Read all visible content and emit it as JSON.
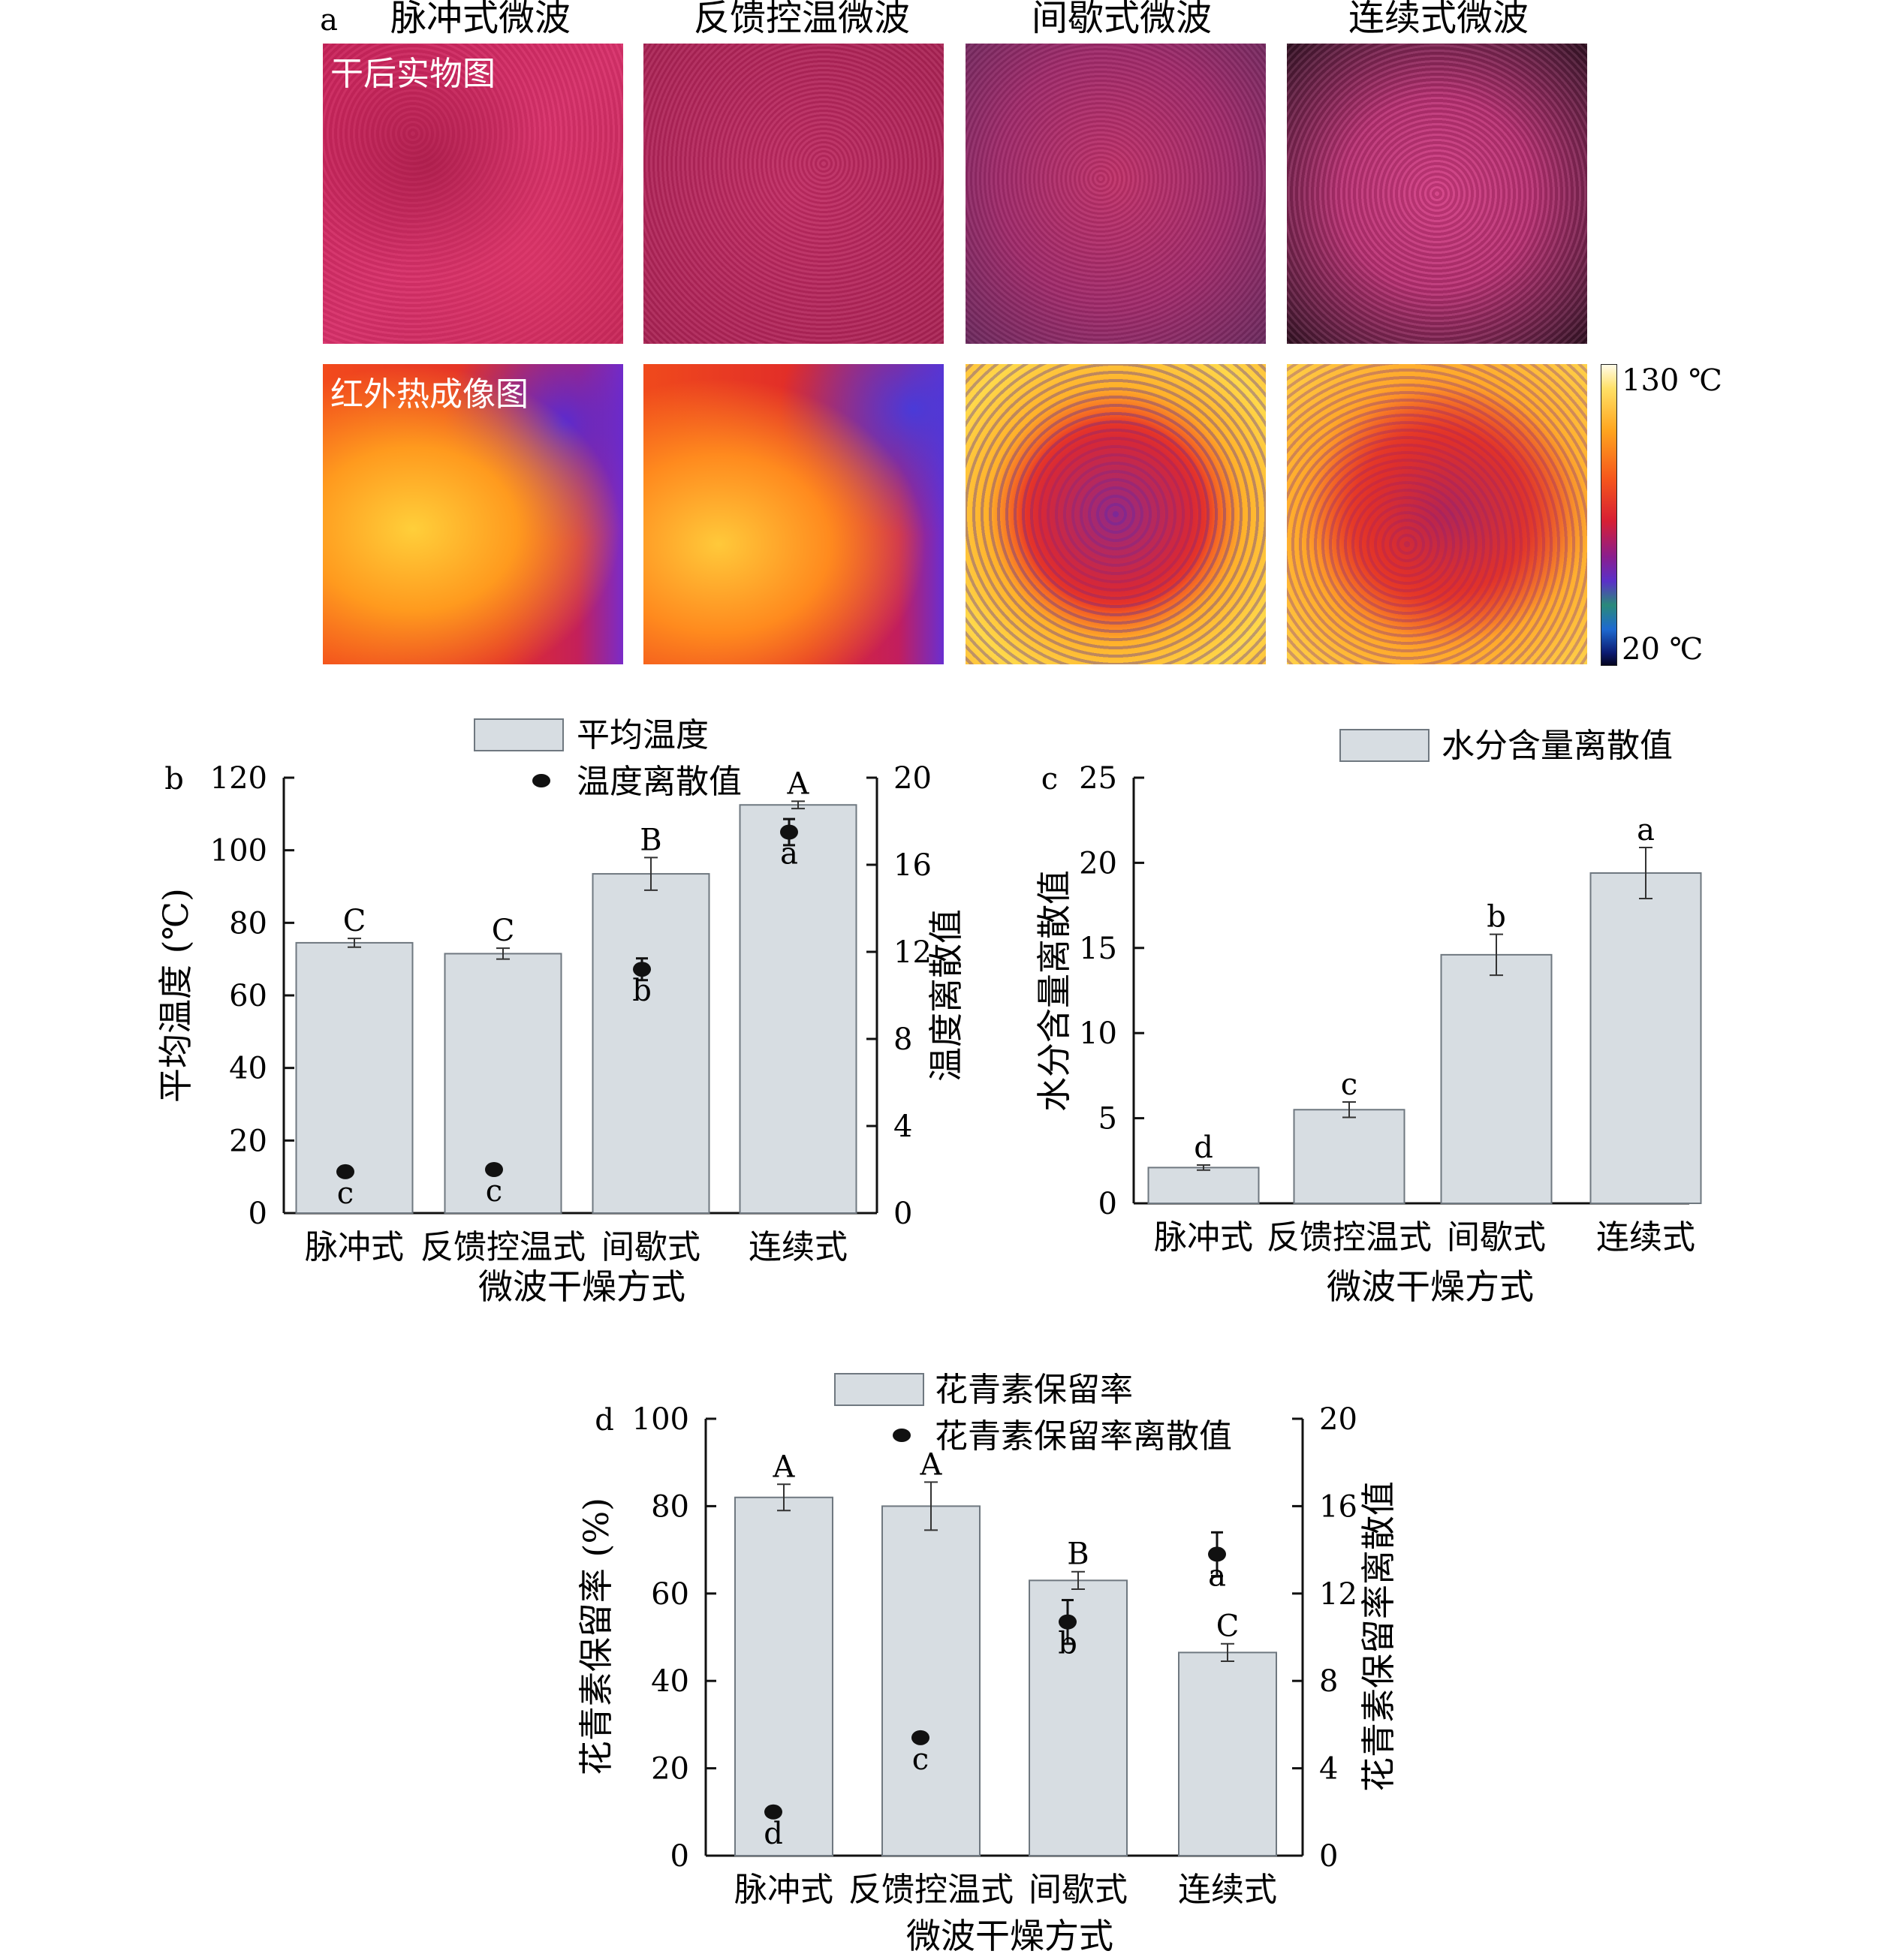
{
  "panel_a": {
    "letter": "a",
    "columns": [
      "脉冲式微波",
      "反馈控温微波",
      "间歇式微波",
      "连续式微波"
    ],
    "row_labels": [
      "干后实物图",
      "红外热成像图"
    ],
    "colorbar_max": "130 ℃",
    "colorbar_min": "20 ℃"
  },
  "chart_data": [
    {
      "id": "b",
      "type": "bar",
      "letter": "b",
      "categories": [
        "脉冲式",
        "反馈控温式",
        "间歇式",
        "连续式"
      ],
      "xlabel": "微波干燥方式",
      "ylabel": "平均温度 (℃)",
      "ylim": [
        0,
        120
      ],
      "yticks": [
        0,
        20,
        40,
        60,
        80,
        100,
        120
      ],
      "y2label": "温度离散值",
      "y2lim": [
        0,
        20
      ],
      "y2ticks": [
        0,
        4,
        8,
        12,
        16,
        20
      ],
      "legend": [
        "平均温度",
        "温度离散值"
      ],
      "legend_position": "top-center",
      "bars": {
        "name": "平均温度",
        "values": [
          74.5,
          71.5,
          93.5,
          112.5
        ],
        "errors": [
          1.2,
          1.5,
          4.5,
          1.0
        ],
        "labels": [
          "C",
          "C",
          "B",
          "A"
        ]
      },
      "points": {
        "name": "温度离散值",
        "values": [
          1.9,
          2.0,
          11.2,
          17.5
        ],
        "errors": [
          0.15,
          0.15,
          0.5,
          0.6
        ],
        "labels": [
          "c",
          "c",
          "b",
          "a"
        ]
      }
    },
    {
      "id": "c",
      "type": "bar",
      "letter": "c",
      "categories": [
        "脉冲式",
        "反馈控温式",
        "间歇式",
        "连续式"
      ],
      "xlabel": "微波干燥方式",
      "ylabel": "水分含量离散值",
      "ylim": [
        0,
        25
      ],
      "yticks": [
        0,
        5,
        10,
        15,
        20,
        25
      ],
      "legend": [
        "水分含量离散值"
      ],
      "legend_position": "top-right",
      "bars": {
        "name": "水分含量离散值",
        "values": [
          2.1,
          5.5,
          14.6,
          19.4
        ],
        "errors": [
          0.15,
          0.45,
          1.2,
          1.5
        ],
        "labels": [
          "d",
          "c",
          "b",
          "a"
        ]
      }
    },
    {
      "id": "d",
      "type": "bar",
      "letter": "d",
      "categories": [
        "脉冲式",
        "反馈控温式",
        "间歇式",
        "连续式"
      ],
      "xlabel": "微波干燥方式",
      "ylabel": "花青素保留率 (%)",
      "ylim": [
        0,
        100
      ],
      "yticks": [
        0,
        20,
        40,
        60,
        80,
        100
      ],
      "y2label": "花青素保留率离散值",
      "y2lim": [
        0,
        20
      ],
      "y2ticks": [
        0,
        4,
        8,
        12,
        16,
        20
      ],
      "legend": [
        "花青素保留率",
        "花青素保留率离散值"
      ],
      "legend_position": "top-center",
      "bars": {
        "name": "花青素保留率",
        "values": [
          82,
          80,
          63,
          46.5
        ],
        "errors": [
          3,
          5.5,
          2,
          2
        ],
        "labels": [
          "A",
          "A",
          "B",
          "C"
        ]
      },
      "points": {
        "name": "花青素保留率离散值",
        "values": [
          2.0,
          5.4,
          10.7,
          13.8
        ],
        "errors": [
          0.15,
          0.2,
          1.0,
          1.0
        ],
        "labels": [
          "d",
          "c",
          "b",
          "a"
        ]
      }
    }
  ]
}
